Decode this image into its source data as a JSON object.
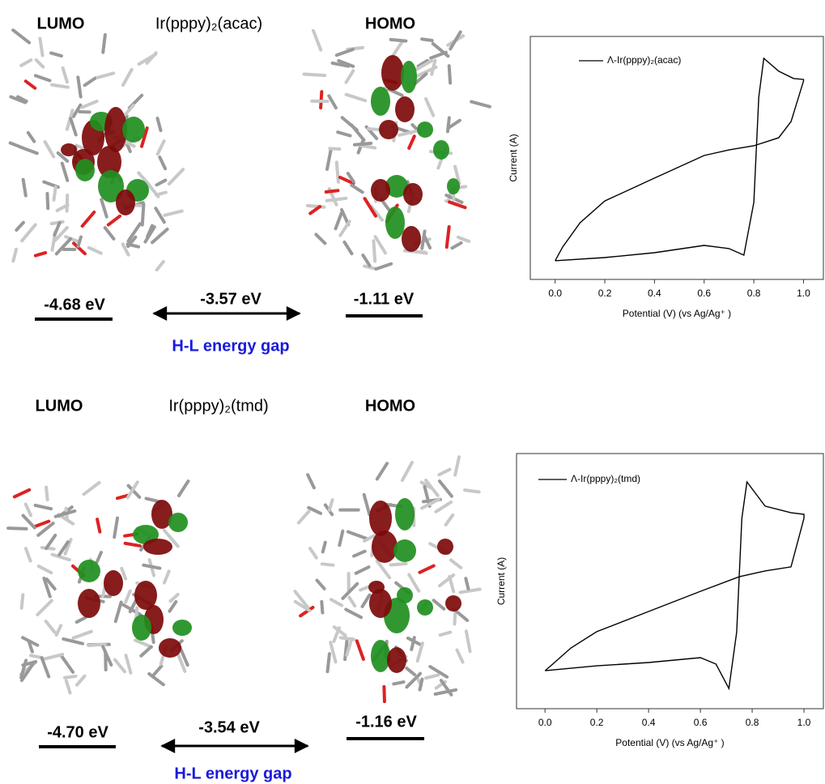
{
  "panels": [
    {
      "lumo_title": "LUMO",
      "compound": "Ir(pppy)₂(acac)",
      "homo_title": "HOMO",
      "lumo_energy": "-4.68 eV",
      "gap_energy": "-3.57 eV",
      "homo_energy": "-1.11 eV",
      "gap_label": "H-L energy gap"
    },
    {
      "lumo_title": "LUMO",
      "compound": "Ir(pppy)₂(tmd)",
      "homo_title": "HOMO",
      "lumo_energy": "-4.70 eV",
      "gap_energy": "-3.54 eV",
      "homo_energy": "-1.16 eV",
      "gap_label": "H-L energy gap"
    }
  ],
  "chart_data": [
    {
      "type": "line",
      "xlabel": "Potential (V) (vs Ag/Ag⁺ )",
      "ylabel": "Current (A)",
      "xlim": [
        -0.1,
        1.08
      ],
      "ylim": [
        0,
        1
      ],
      "xticks": [
        {
          "value": 0,
          "label": "0.0"
        },
        {
          "value": 0.2,
          "label": "0.2"
        },
        {
          "value": 0.4,
          "label": "0.4"
        },
        {
          "value": 0.6,
          "label": "0.6"
        },
        {
          "value": 0.8,
          "label": "0.8"
        },
        {
          "value": 1,
          "label": "1.0"
        }
      ],
      "series": [
        {
          "name": "Λ-Ir(pppy)₂(acac)",
          "color": "#000000",
          "x": [
            0.0,
            0.2,
            0.4,
            0.6,
            0.7,
            0.76,
            0.8,
            0.82,
            0.84,
            0.9,
            0.96,
            1.0,
            1.0,
            0.95,
            0.9,
            0.8,
            0.7,
            0.6,
            0.4,
            0.2,
            0.1,
            0.03,
            0.0
          ],
          "values": [
            0.077,
            0.09,
            0.11,
            0.14,
            0.127,
            0.1,
            0.317,
            0.75,
            0.91,
            0.857,
            0.827,
            0.823,
            0.817,
            0.65,
            0.583,
            0.55,
            0.533,
            0.51,
            0.417,
            0.323,
            0.233,
            0.133,
            0.077
          ]
        }
      ]
    },
    {
      "type": "line",
      "xlabel": "Potential (V) (vs Ag/Ag⁺ )",
      "ylabel": "Current (A)",
      "xlim": [
        -0.11,
        1.075
      ],
      "ylim": [
        0,
        1
      ],
      "xticks": [
        {
          "value": 0,
          "label": "0.0"
        },
        {
          "value": 0.2,
          "label": "0.2"
        },
        {
          "value": 0.4,
          "label": "0.4"
        },
        {
          "value": 0.6,
          "label": "0.6"
        },
        {
          "value": 0.8,
          "label": "0.8"
        },
        {
          "value": 1,
          "label": "1.0"
        }
      ],
      "series": [
        {
          "name": "Λ-Ir(pppy)₂(tmd)",
          "color": "#000000",
          "x": [
            0.0,
            0.2,
            0.4,
            0.6,
            0.66,
            0.71,
            0.74,
            0.76,
            0.78,
            0.85,
            0.95,
            1.0,
            1.0,
            0.95,
            0.85,
            0.75,
            0.6,
            0.4,
            0.2,
            0.1,
            0.03,
            0.0
          ],
          "values": [
            0.149,
            0.168,
            0.181,
            0.2,
            0.175,
            0.079,
            0.3,
            0.746,
            0.889,
            0.794,
            0.768,
            0.762,
            0.746,
            0.556,
            0.54,
            0.517,
            0.46,
            0.381,
            0.302,
            0.238,
            0.175,
            0.149
          ]
        }
      ]
    }
  ]
}
